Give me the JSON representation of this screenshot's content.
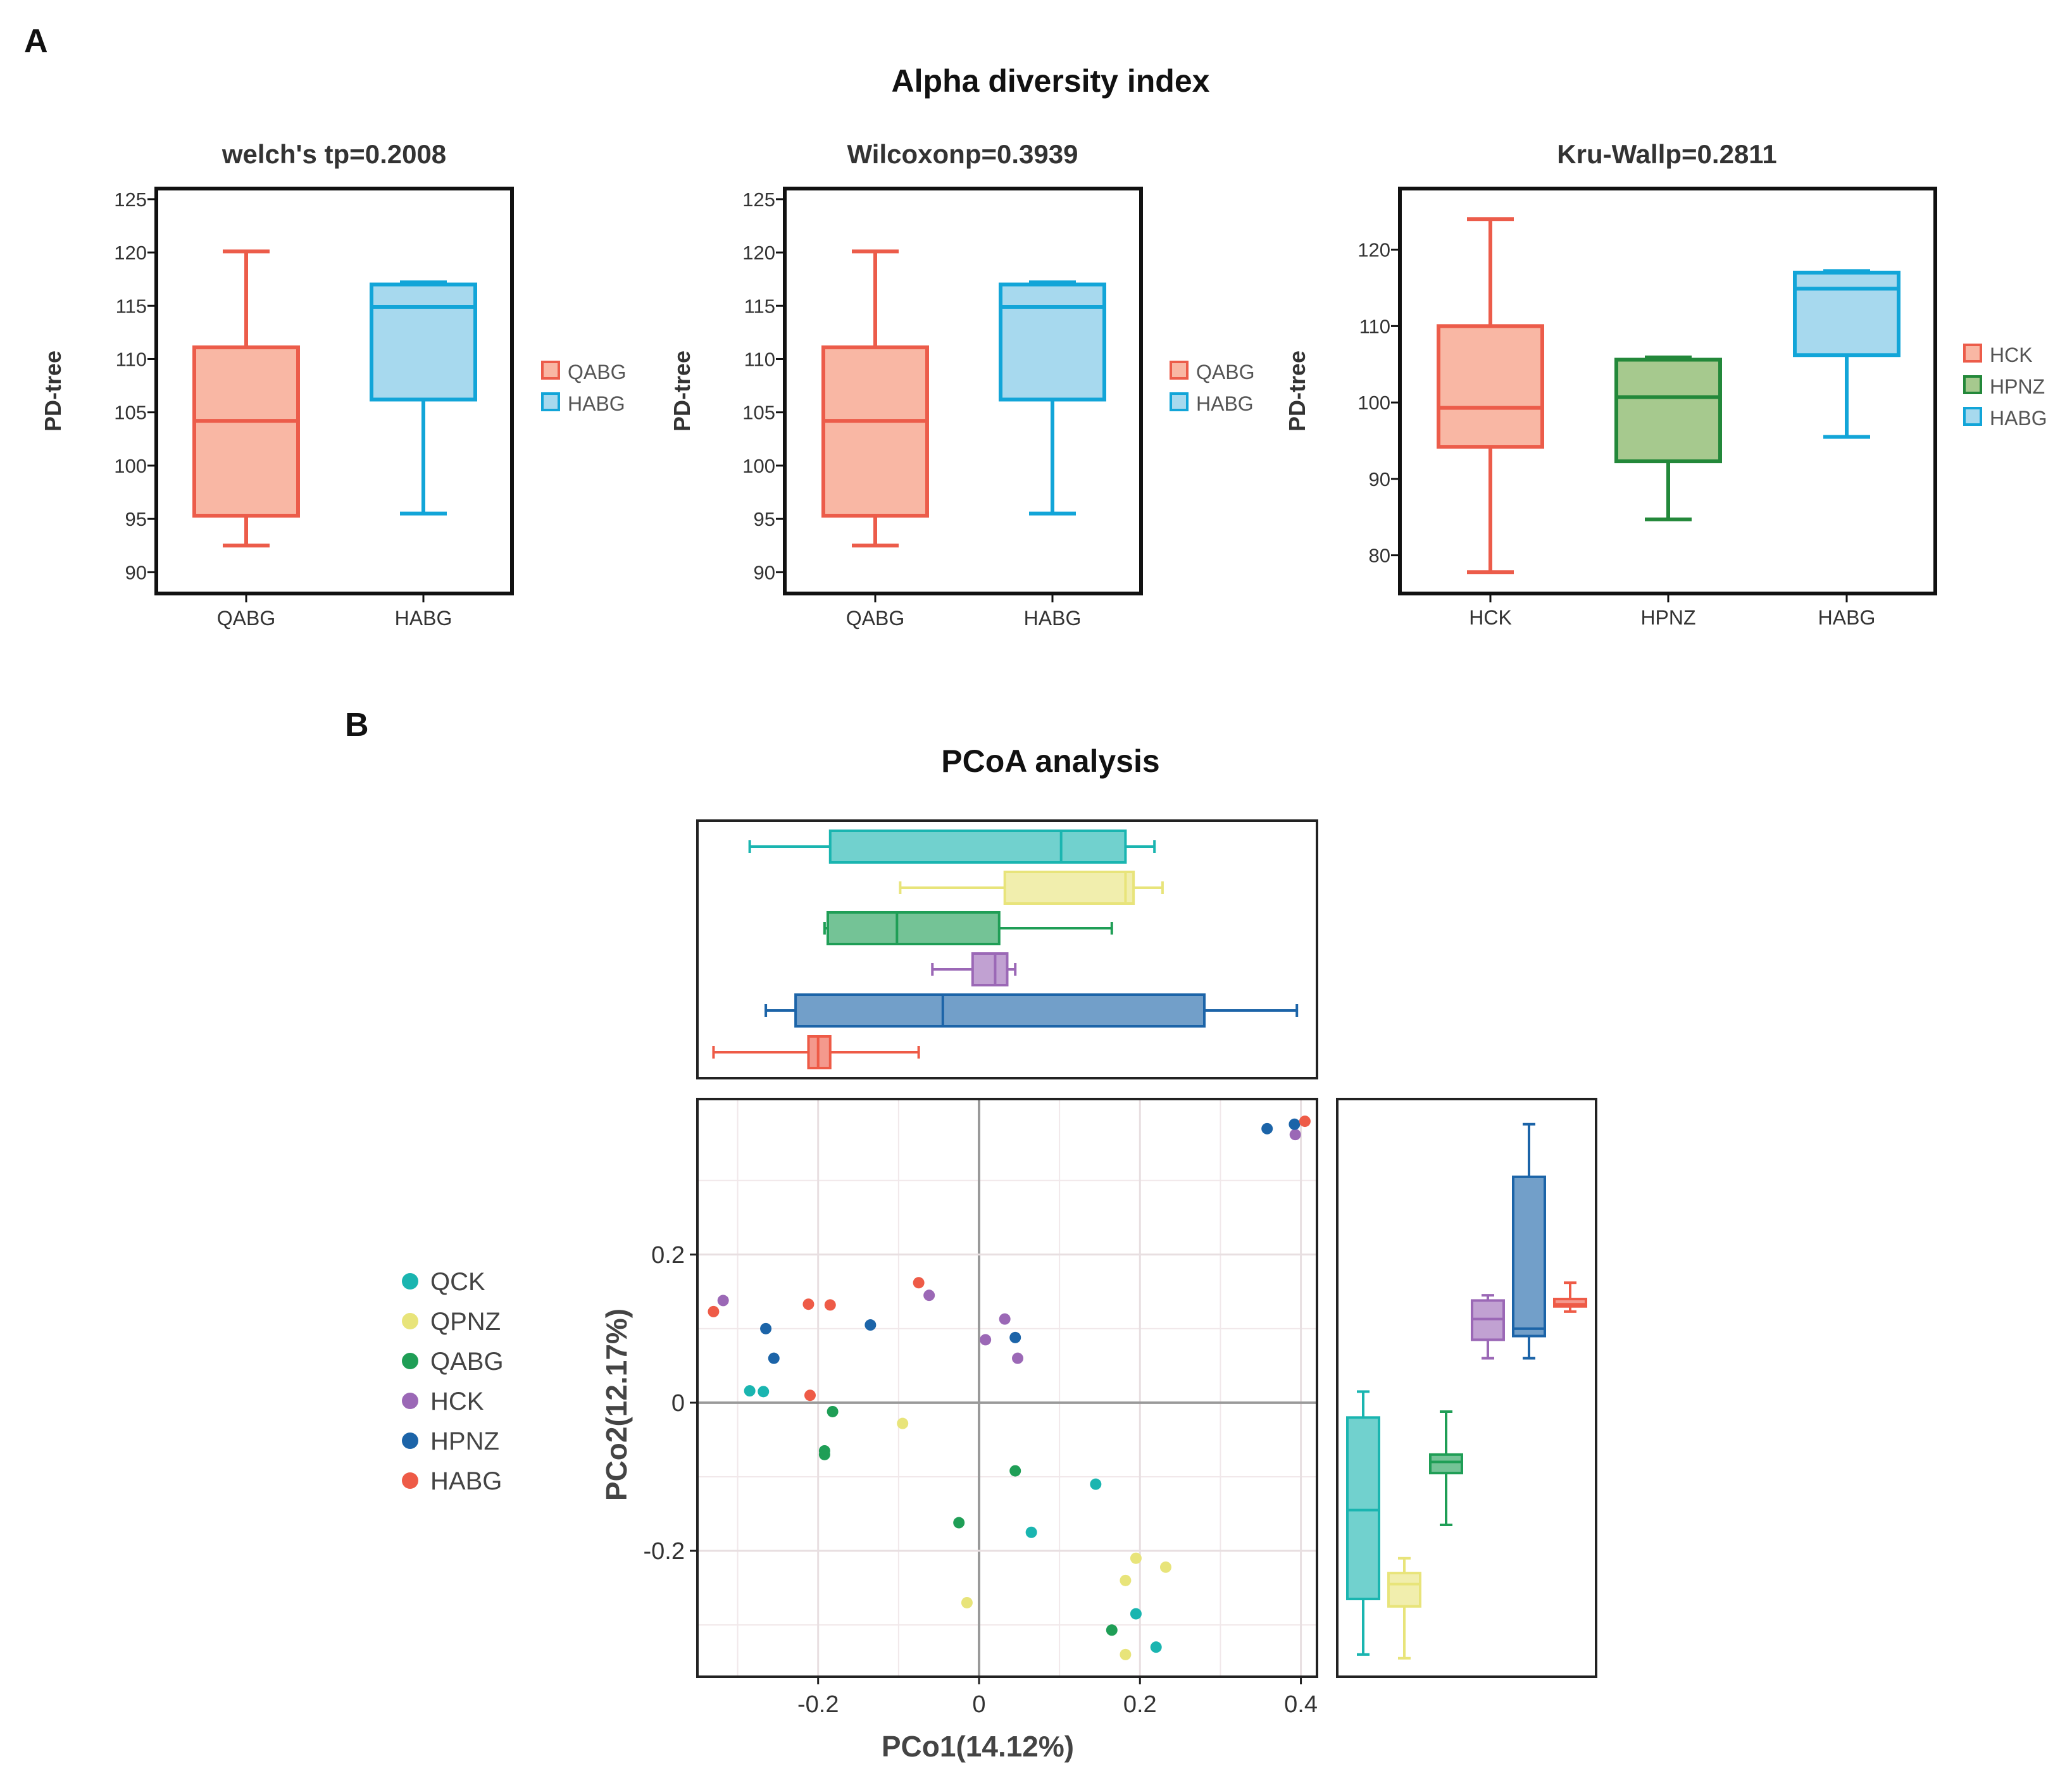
{
  "figure": {
    "panel_a_letter": "A",
    "panel_b_letter": "B",
    "panel_a_title": "Alpha diversity index",
    "panel_b_title": "PCoA analysis"
  },
  "colors": {
    "QCK": "#1ab5b0",
    "QPNZ": "#e8e47a",
    "QABG": "#1f9e56",
    "HCK": "#9b68b6",
    "HPNZ": "#1c64a8",
    "HABG": "#ee5b47",
    "alpha_red_fill": "#f9b7a4",
    "alpha_red_line": "#ec5c4a",
    "alpha_blue_fill": "#a7d9ee",
    "alpha_blue_line": "#12a5d8",
    "alpha_green_fill": "#a6c98e",
    "alpha_green_line": "#23883a"
  },
  "chart_data": [
    {
      "type": "box",
      "title": "welch's tp=0.2008",
      "ylabel": "PD-tree",
      "ylim": [
        88,
        126
      ],
      "yticks": [
        90,
        95,
        100,
        105,
        110,
        115,
        120,
        125
      ],
      "categories": [
        "QABG",
        "HABG"
      ],
      "boxes": [
        {
          "name": "QABG",
          "min": 92.5,
          "q1": 95.3,
          "median": 104.2,
          "q3": 111.1,
          "max": 120.1,
          "fill": "alpha_red_fill",
          "line": "alpha_red_line"
        },
        {
          "name": "HABG",
          "min": 95.5,
          "q1": 106.2,
          "median": 114.9,
          "q3": 117.0,
          "max": 117.2,
          "fill": "alpha_blue_fill",
          "line": "alpha_blue_line"
        }
      ],
      "legend": [
        "QABG",
        "HABG"
      ]
    },
    {
      "type": "box",
      "title": "Wilcoxonp=0.3939",
      "ylabel": "PD-tree",
      "ylim": [
        88,
        126
      ],
      "yticks": [
        90,
        95,
        100,
        105,
        110,
        115,
        120,
        125
      ],
      "categories": [
        "QABG",
        "HABG"
      ],
      "boxes": [
        {
          "name": "QABG",
          "min": 92.5,
          "q1": 95.3,
          "median": 104.2,
          "q3": 111.1,
          "max": 120.1,
          "fill": "alpha_red_fill",
          "line": "alpha_red_line"
        },
        {
          "name": "HABG",
          "min": 95.5,
          "q1": 106.2,
          "median": 114.9,
          "q3": 117.0,
          "max": 117.2,
          "fill": "alpha_blue_fill",
          "line": "alpha_blue_line"
        }
      ],
      "legend": [
        "QABG",
        "HABG"
      ]
    },
    {
      "type": "box",
      "title": "Kru-Wallp=0.2811",
      "ylabel": "PD-tree",
      "ylim": [
        75,
        128
      ],
      "yticks": [
        80,
        90,
        100,
        110,
        120
      ],
      "categories": [
        "HCK",
        "HPNZ",
        "HABG"
      ],
      "boxes": [
        {
          "name": "HCK",
          "min": 77.8,
          "q1": 94.2,
          "median": 99.3,
          "q3": 110.0,
          "max": 124.0,
          "fill": "alpha_red_fill",
          "line": "alpha_red_line"
        },
        {
          "name": "HPNZ",
          "min": 84.7,
          "q1": 92.3,
          "median": 100.7,
          "q3": 105.6,
          "max": 105.9,
          "fill": "alpha_green_fill",
          "line": "alpha_green_line"
        },
        {
          "name": "HABG",
          "min": 95.5,
          "q1": 106.2,
          "median": 114.9,
          "q3": 117.0,
          "max": 117.2,
          "fill": "alpha_blue_fill",
          "line": "alpha_blue_line"
        }
      ],
      "legend": [
        "HCK",
        "HPNZ",
        "HABG"
      ]
    },
    {
      "type": "scatter",
      "title": "PCoA analysis",
      "xlabel": "PCo1(14.12%)",
      "ylabel": "PCo2(12.17%)",
      "xlim": [
        -0.35,
        0.42
      ],
      "ylim": [
        -0.37,
        0.41
      ],
      "xticks": [
        -0.2,
        0,
        0.2,
        0.4
      ],
      "xtick_labels": [
        "-0.2",
        "0",
        "0.2",
        "0.4"
      ],
      "yticks": [
        -0.2,
        0,
        0.2
      ],
      "ytick_labels": [
        "-0.2",
        "0",
        "0.2"
      ],
      "legend": [
        "QCK",
        "QPNZ",
        "QABG",
        "HCK",
        "HPNZ",
        "HABG"
      ],
      "series": [
        {
          "name": "QCK",
          "points": [
            [
              -0.285,
              0.016
            ],
            [
              -0.268,
              0.015
            ],
            [
              0.145,
              -0.11
            ],
            [
              0.065,
              -0.175
            ],
            [
              0.195,
              -0.285
            ],
            [
              0.22,
              -0.33
            ]
          ]
        },
        {
          "name": "QPNZ",
          "points": [
            [
              -0.095,
              -0.028
            ],
            [
              -0.015,
              -0.27
            ],
            [
              0.195,
              -0.21
            ],
            [
              0.232,
              -0.222
            ],
            [
              0.182,
              -0.24
            ],
            [
              0.182,
              -0.34
            ]
          ]
        },
        {
          "name": "QABG",
          "points": [
            [
              -0.182,
              -0.012
            ],
            [
              -0.192,
              -0.065
            ],
            [
              -0.192,
              -0.07
            ],
            [
              -0.025,
              -0.162
            ],
            [
              0.045,
              -0.092
            ],
            [
              0.165,
              -0.307
            ]
          ]
        },
        {
          "name": "HCK",
          "points": [
            [
              -0.318,
              0.138
            ],
            [
              -0.062,
              0.145
            ],
            [
              0.032,
              0.113
            ],
            [
              0.008,
              0.085
            ],
            [
              0.048,
              0.06
            ],
            [
              0.393,
              0.362
            ]
          ]
        },
        {
          "name": "HPNZ",
          "points": [
            [
              -0.265,
              0.1
            ],
            [
              -0.255,
              0.06
            ],
            [
              -0.135,
              0.105
            ],
            [
              0.045,
              0.088
            ],
            [
              0.358,
              0.37
            ],
            [
              0.392,
              0.376
            ]
          ]
        },
        {
          "name": "HABG",
          "points": [
            [
              -0.33,
              0.123
            ],
            [
              -0.212,
              0.133
            ],
            [
              -0.185,
              0.132
            ],
            [
              -0.075,
              0.162
            ],
            [
              -0.21,
              0.01
            ],
            [
              0.405,
              0.38
            ]
          ]
        }
      ],
      "top_boxplot": [
        {
          "name": "QCK",
          "min": -0.285,
          "q1": -0.185,
          "median": 0.102,
          "q3": 0.182,
          "max": 0.218
        },
        {
          "name": "QPNZ",
          "min": -0.098,
          "q1": 0.032,
          "median": 0.182,
          "q3": 0.192,
          "max": 0.228
        },
        {
          "name": "QABG",
          "min": -0.192,
          "q1": -0.188,
          "median": -0.102,
          "q3": 0.025,
          "max": 0.165
        },
        {
          "name": "HCK",
          "min": -0.058,
          "q1": -0.008,
          "median": 0.02,
          "q3": 0.035,
          "max": 0.045
        },
        {
          "name": "HPNZ",
          "min": -0.265,
          "q1": -0.228,
          "median": -0.045,
          "q3": 0.28,
          "max": 0.395
        },
        {
          "name": "HABG",
          "min": -0.33,
          "q1": -0.212,
          "median": -0.2,
          "q3": -0.185,
          "max": -0.075
        }
      ],
      "right_boxplot": [
        {
          "name": "QCK",
          "min": -0.34,
          "q1": -0.265,
          "median": -0.145,
          "q3": -0.02,
          "max": 0.015
        },
        {
          "name": "QPNZ",
          "min": -0.345,
          "q1": -0.275,
          "median": -0.245,
          "q3": -0.23,
          "max": -0.21
        },
        {
          "name": "QABG",
          "min": -0.165,
          "q1": -0.095,
          "median": -0.08,
          "q3": -0.07,
          "max": -0.012
        },
        {
          "name": "HCK",
          "min": 0.06,
          "q1": 0.085,
          "median": 0.113,
          "q3": 0.138,
          "max": 0.145
        },
        {
          "name": "HPNZ",
          "min": 0.06,
          "q1": 0.09,
          "median": 0.1,
          "q3": 0.305,
          "max": 0.376
        },
        {
          "name": "HABG",
          "min": 0.123,
          "q1": 0.13,
          "median": 0.133,
          "q3": 0.14,
          "max": 0.162
        }
      ]
    }
  ]
}
